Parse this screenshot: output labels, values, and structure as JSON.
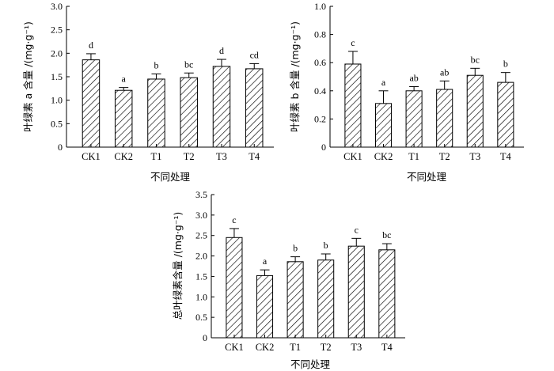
{
  "chart_data": [
    {
      "type": "bar",
      "categories": [
        "CK1",
        "CK2",
        "T1",
        "T2",
        "T3",
        "T4"
      ],
      "values": [
        1.86,
        1.21,
        1.45,
        1.48,
        1.72,
        1.67
      ],
      "errors": [
        0.13,
        0.06,
        0.11,
        0.1,
        0.15,
        0.11
      ],
      "significance": [
        "d",
        "a",
        "b",
        "bc",
        "d",
        "cd"
      ],
      "ylim": [
        0,
        3.0
      ],
      "yticks": [
        "0",
        "0.5",
        "1.0",
        "1.5",
        "2.0",
        "2.5",
        "3.0"
      ],
      "ylabel": "叶绿素 a 含量 /(mg·g⁻¹)",
      "xlabel": "不同处理",
      "fill": "diagonal hatch",
      "color": "#000000"
    },
    {
      "type": "bar",
      "categories": [
        "CK1",
        "CK2",
        "T1",
        "T2",
        "T3",
        "T4"
      ],
      "values": [
        0.59,
        0.31,
        0.4,
        0.41,
        0.51,
        0.46
      ],
      "errors": [
        0.09,
        0.09,
        0.03,
        0.06,
        0.05,
        0.07
      ],
      "significance": [
        "c",
        "a",
        "ab",
        "ab",
        "bc",
        "b"
      ],
      "ylim": [
        0,
        1.0
      ],
      "yticks": [
        "0",
        "0.2",
        "0.4",
        "0.6",
        "0.8",
        "1.0"
      ],
      "ylabel": "叶绿素 b 含量 /(mg·g⁻¹)",
      "xlabel": "不同处理",
      "fill": "diagonal hatch",
      "color": "#000000"
    },
    {
      "type": "bar",
      "categories": [
        "CK1",
        "CK2",
        "T1",
        "T2",
        "T3",
        "T4"
      ],
      "values": [
        2.45,
        1.52,
        1.86,
        1.9,
        2.24,
        2.15
      ],
      "errors": [
        0.22,
        0.14,
        0.12,
        0.15,
        0.19,
        0.15
      ],
      "significance": [
        "c",
        "a",
        "b",
        "b",
        "c",
        "bc"
      ],
      "ylim": [
        0,
        3.5
      ],
      "yticks": [
        "0",
        "0.5",
        "1.0",
        "1.5",
        "2.0",
        "2.5",
        "3.0",
        "3.5"
      ],
      "ylabel": "总叶绿素含量 /(mg·g⁻¹)",
      "xlabel": "不同处理",
      "fill": "diagonal hatch",
      "color": "#000000"
    }
  ]
}
